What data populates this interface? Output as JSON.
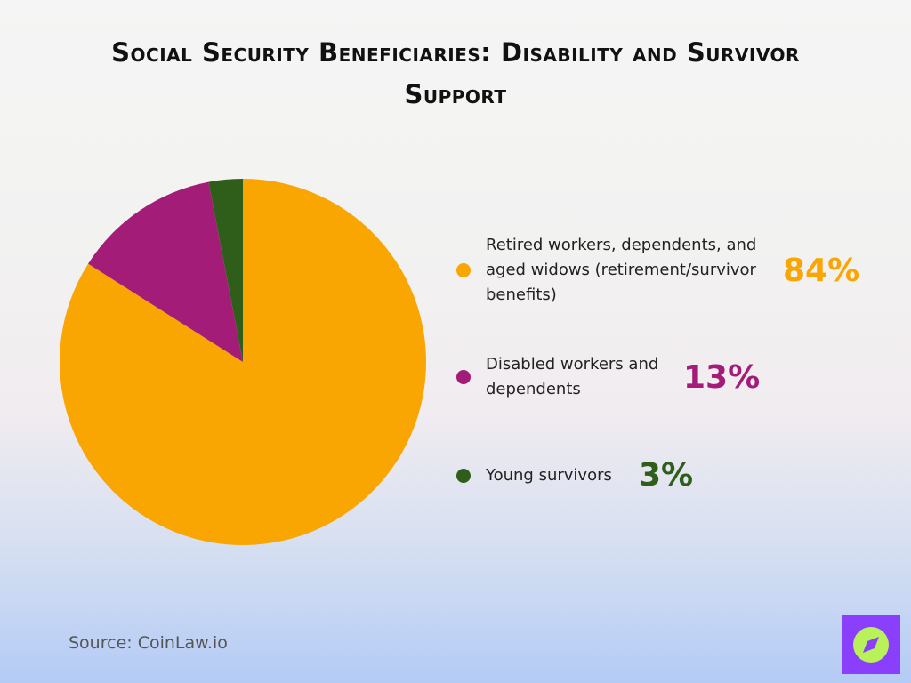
{
  "chart_data": {
    "type": "pie",
    "title": "Social Security Beneficiaries: Disability and Survivor Support",
    "categories": [
      "Retired workers, dependents, and aged widows (retirement/survivor benefits)",
      "Disabled workers and dependents",
      "Young survivors"
    ],
    "values": [
      84,
      13,
      3
    ],
    "value_labels": [
      "84%",
      "13%",
      "3%"
    ],
    "colors": [
      "#f9a602",
      "#a21c78",
      "#2f5e1b"
    ],
    "source": "Source: CoinLaw.io"
  }
}
